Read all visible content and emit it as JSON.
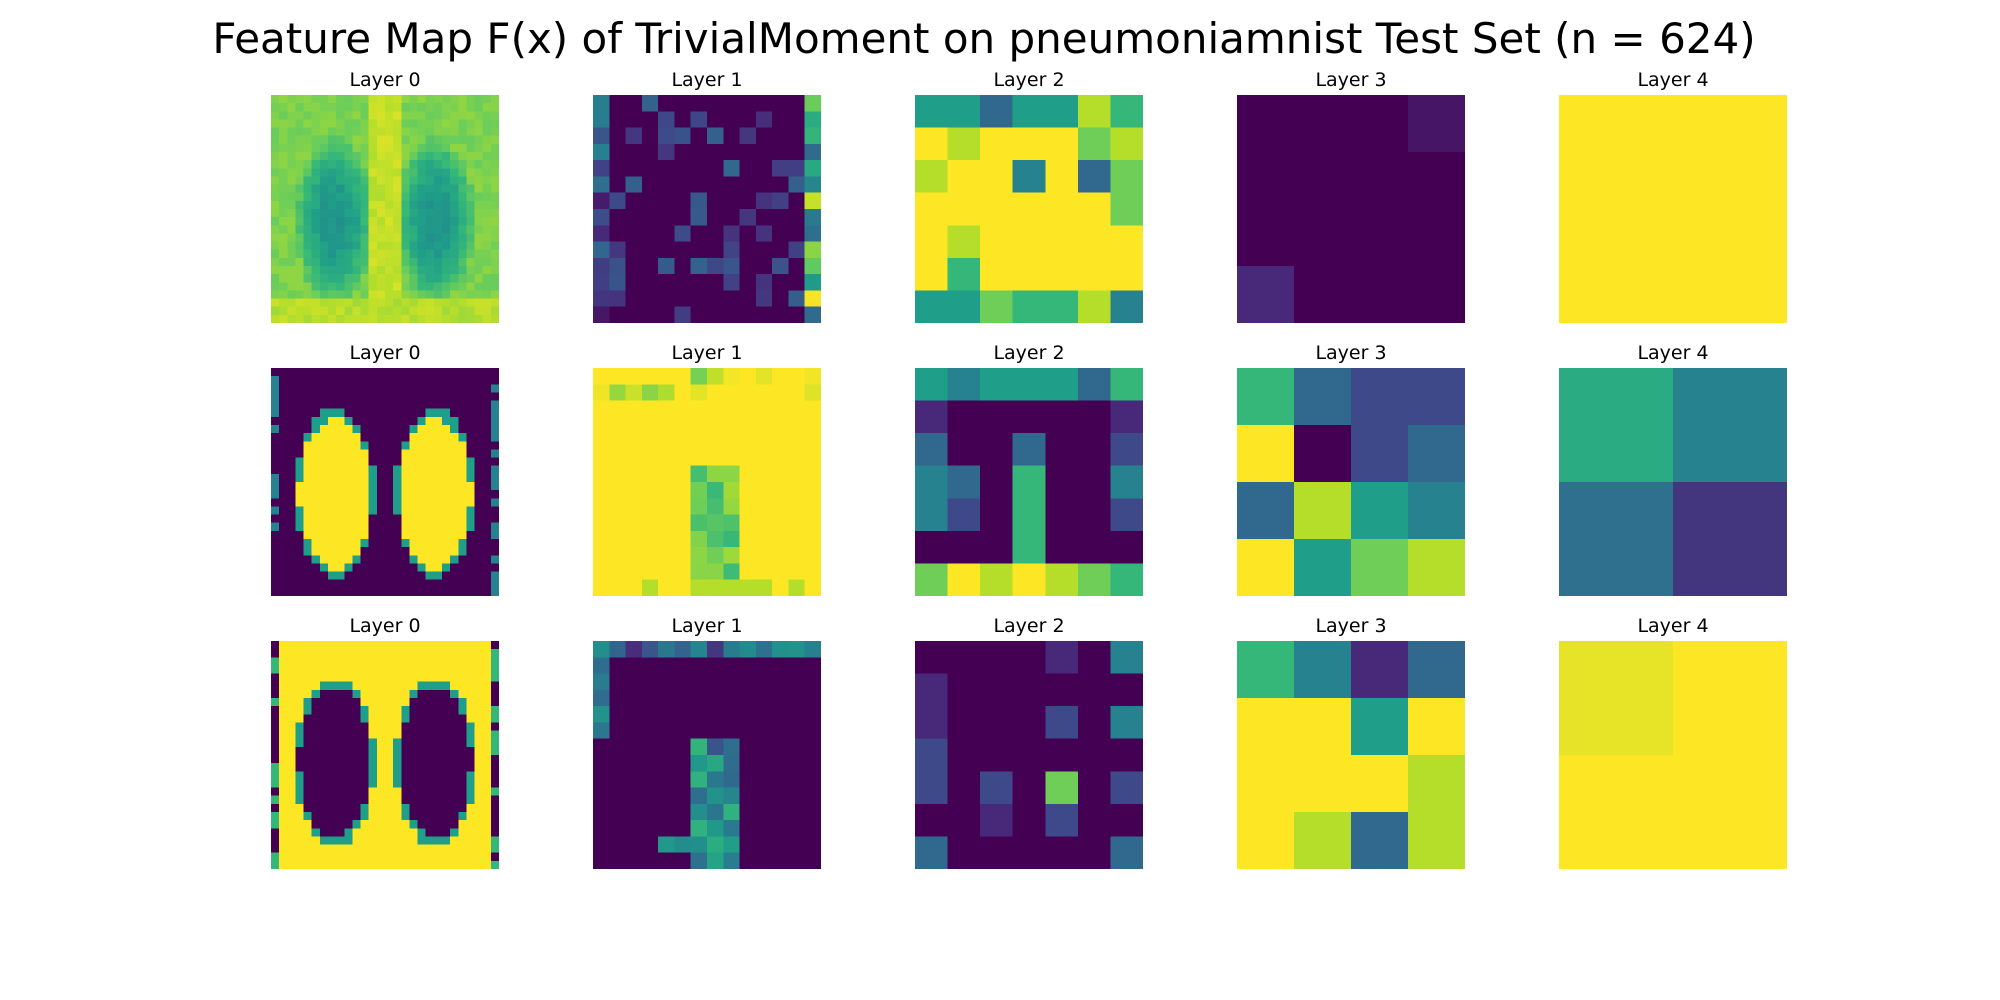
{
  "title": "Feature Map F(x) of TrivialMoment on pneumoniamnist Test Set (n = 624)",
  "colormap": [
    "#440154",
    "#482878",
    "#3e4989",
    "#31688e",
    "#26828e",
    "#1f9e89",
    "#35b779",
    "#6ece58",
    "#b5de2b",
    "#fde725"
  ],
  "chart_data": {
    "type": "heatmap",
    "title": "Feature Map F(x) of TrivialMoment on pneumoniamnist Test Set (n = 624)",
    "colorscale": "viridis",
    "value_scale": "0 = darkest (#440154) to 9 = brightest (#fde725), normalized per panel",
    "panels": [
      {
        "row": 0,
        "col": 0,
        "title": "Layer 0",
        "size": 28,
        "kind": "row0"
      },
      {
        "row": 0,
        "col": 1,
        "title": "Layer 1",
        "size": 14,
        "kind": "sparse_noise"
      },
      {
        "row": 0,
        "col": 2,
        "title": "Layer 2",
        "size": 7,
        "kind": "grid",
        "values": [
          [
            5,
            5,
            3,
            5,
            5,
            8,
            6
          ],
          [
            9,
            8,
            9,
            9,
            9,
            7,
            8
          ],
          [
            8,
            9,
            9,
            4,
            9,
            3,
            7
          ],
          [
            9,
            9,
            9,
            9,
            9,
            9,
            7
          ],
          [
            9,
            8,
            9,
            9,
            9,
            9,
            9
          ],
          [
            9,
            6,
            9,
            9,
            9,
            9,
            9
          ],
          [
            5,
            5,
            7,
            6,
            6,
            8,
            4
          ]
        ]
      },
      {
        "row": 0,
        "col": 3,
        "title": "Layer 3",
        "size": 4,
        "kind": "grid",
        "values": [
          [
            0,
            0,
            0,
            0.5
          ],
          [
            0,
            0,
            0,
            0
          ],
          [
            0,
            0,
            0,
            0
          ],
          [
            1,
            0,
            0,
            0
          ]
        ]
      },
      {
        "row": 0,
        "col": 4,
        "title": "Layer 4",
        "size": 2,
        "kind": "grid",
        "values": [
          [
            9,
            9
          ],
          [
            9,
            9
          ]
        ]
      },
      {
        "row": 1,
        "col": 0,
        "title": "Layer 0",
        "size": 28,
        "kind": "row1"
      },
      {
        "row": 1,
        "col": 1,
        "title": "Layer 1",
        "size": 14,
        "kind": "bright_noise"
      },
      {
        "row": 1,
        "col": 2,
        "title": "Layer 2",
        "size": 7,
        "kind": "grid",
        "values": [
          [
            5,
            4,
            5,
            5,
            5,
            3,
            6
          ],
          [
            1,
            0,
            0,
            0,
            0,
            0,
            1
          ],
          [
            3,
            0,
            0,
            3,
            0,
            0,
            2
          ],
          [
            4,
            3,
            0,
            6,
            0,
            0,
            4
          ],
          [
            4,
            2,
            0,
            6,
            0,
            0,
            2
          ],
          [
            0,
            0,
            0,
            6,
            0,
            0,
            0
          ],
          [
            7,
            9,
            8,
            9,
            8,
            7,
            6
          ]
        ]
      },
      {
        "row": 1,
        "col": 3,
        "title": "Layer 3",
        "size": 4,
        "kind": "grid",
        "values": [
          [
            6,
            3,
            2,
            2
          ],
          [
            9,
            0,
            2,
            3
          ],
          [
            3,
            8,
            5,
            4
          ],
          [
            9,
            5,
            7,
            8
          ]
        ]
      },
      {
        "row": 1,
        "col": 4,
        "title": "Layer 4",
        "size": 2,
        "kind": "grid",
        "values": [
          [
            5.5,
            4
          ],
          [
            3.3,
            1.4
          ]
        ]
      },
      {
        "row": 2,
        "col": 0,
        "title": "Layer 0",
        "size": 28,
        "kind": "row2"
      },
      {
        "row": 2,
        "col": 1,
        "title": "Layer 1",
        "size": 14,
        "kind": "dark_noise"
      },
      {
        "row": 2,
        "col": 2,
        "title": "Layer 2",
        "size": 7,
        "kind": "grid",
        "values": [
          [
            0,
            0,
            0,
            0,
            1,
            0,
            4
          ],
          [
            1,
            0,
            0,
            0,
            0,
            0,
            0
          ],
          [
            1,
            0,
            0,
            0,
            2,
            0,
            4
          ],
          [
            2,
            0,
            0,
            0,
            0,
            0,
            0
          ],
          [
            2,
            0,
            2,
            0,
            7,
            0,
            2
          ],
          [
            0,
            0,
            1,
            0,
            2,
            0,
            0
          ],
          [
            3,
            0,
            0,
            0,
            0,
            0,
            3
          ]
        ]
      },
      {
        "row": 2,
        "col": 3,
        "title": "Layer 3",
        "size": 4,
        "kind": "grid",
        "values": [
          [
            6,
            4,
            1,
            3
          ],
          [
            9,
            9,
            5,
            9
          ],
          [
            9,
            9,
            9,
            8
          ],
          [
            9,
            8,
            3,
            8
          ]
        ]
      },
      {
        "row": 2,
        "col": 4,
        "title": "Layer 4",
        "size": 2,
        "kind": "grid",
        "values": [
          [
            8.7,
            9
          ],
          [
            9,
            9
          ]
        ]
      }
    ]
  }
}
